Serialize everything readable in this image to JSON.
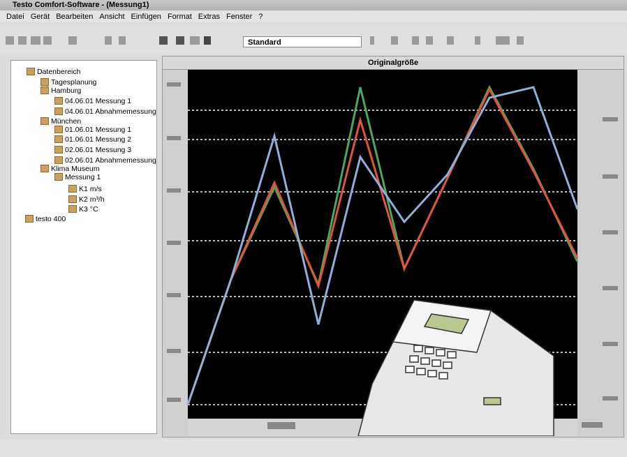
{
  "window": {
    "title": "Testo Comfort-Software - (Messung1)"
  },
  "menu": [
    "Datei",
    "Gerät",
    "Bearbeiten",
    "Ansicht",
    "Einfügen",
    "Format",
    "Extras",
    "Fenster",
    "?"
  ],
  "toolbar": {
    "view_selector": "Standard"
  },
  "tree": [
    {
      "label": "Datenbereich",
      "level": 0
    },
    {
      "label": "Tagesplanung",
      "level": 1
    },
    {
      "label": "Hamburg",
      "level": 1
    },
    {
      "label": "04.06.01 Messung 1",
      "level": 2
    },
    {
      "label": "04.06.01 Abnahmemessung",
      "level": 2
    },
    {
      "label": "München",
      "level": 1
    },
    {
      "label": "01.06.01 Messung 1",
      "level": 2
    },
    {
      "label": "01.06.01 Messung 2",
      "level": 2
    },
    {
      "label": "02.06.01 Messung 3",
      "level": 2
    },
    {
      "label": "02.06.01 Abnahmemessung",
      "level": 2
    },
    {
      "label": "Klima Museum",
      "level": 1
    },
    {
      "label": "Messung 1",
      "level": 2
    },
    {
      "label": "K1 m/s",
      "level": 3
    },
    {
      "label": "K2 m³/h",
      "level": 3
    },
    {
      "label": "K3 °C",
      "level": 3
    },
    {
      "label": "testo 400",
      "level": -1
    }
  ],
  "panel": {
    "title": "Originalgröße"
  }
}
